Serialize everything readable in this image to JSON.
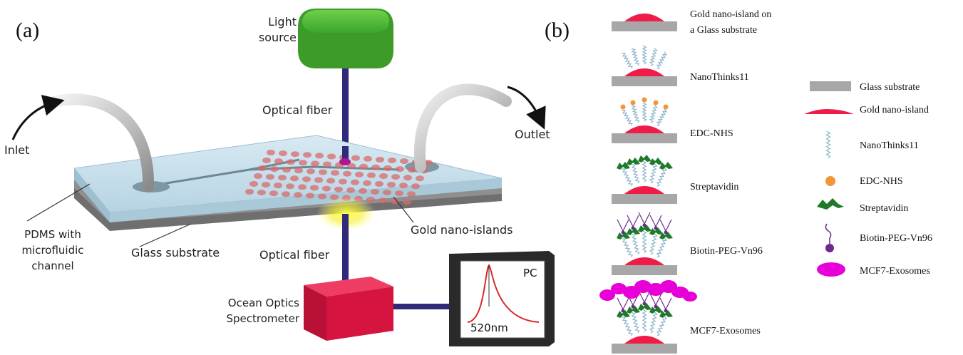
{
  "panel_a": {
    "label": "(a)",
    "light_source": [
      "Light",
      "source"
    ],
    "optical_fiber_top": "Optical fiber",
    "optical_fiber_bottom": "Optical fiber",
    "inlet": "Inlet",
    "outlet": "Outlet",
    "pdms": [
      "PDMS with",
      "microfluidic",
      "channel"
    ],
    "glass_substrate": "Glass substrate",
    "gold_nano_islands": "Gold nano-islands",
    "spectrometer": [
      "Ocean Optics",
      "Spectrometer"
    ],
    "pc": "PC",
    "peak": "520nm"
  },
  "panel_b": {
    "label": "(b)",
    "steps": [
      {
        "label": [
          "Gold nano-island on",
          "a  Glass substrate"
        ]
      },
      {
        "label": [
          "NanoThinks11"
        ]
      },
      {
        "label": [
          "EDC-NHS"
        ]
      },
      {
        "label": [
          "Streptavidin"
        ]
      },
      {
        "label": [
          "Biotin-PEG-Vn96"
        ]
      },
      {
        "label": [
          "MCF7-Exosomes"
        ]
      }
    ],
    "legend": [
      {
        "icon": "glass-substrate-icon",
        "label": "Glass substrate"
      },
      {
        "icon": "gold-nano-island-icon",
        "label": "Gold nano-island"
      },
      {
        "icon": "nanothinks-linker-icon",
        "label": "NanoThinks11"
      },
      {
        "icon": "edc-nhs-dot-icon",
        "label": "EDC-NHS"
      },
      {
        "icon": "streptavidin-icon",
        "label": "Streptavidin"
      },
      {
        "icon": "biotin-peg-icon",
        "label": "Biotin-PEG-Vn96"
      },
      {
        "icon": "exosome-icon",
        "label": "MCF7-Exosomes"
      }
    ]
  },
  "colors": {
    "gold_island": "#ee1c47",
    "glass": "#a7a7a7",
    "light_source": "#3aa62e",
    "spectrometer": "#d5143f",
    "fiber": "#2f2a7a",
    "edc": "#f2963a",
    "streptavidin": "#1e7a2a",
    "biotin": "#6a2a8e",
    "exosome": "#e800d8",
    "linker": "#8ab4cc"
  }
}
